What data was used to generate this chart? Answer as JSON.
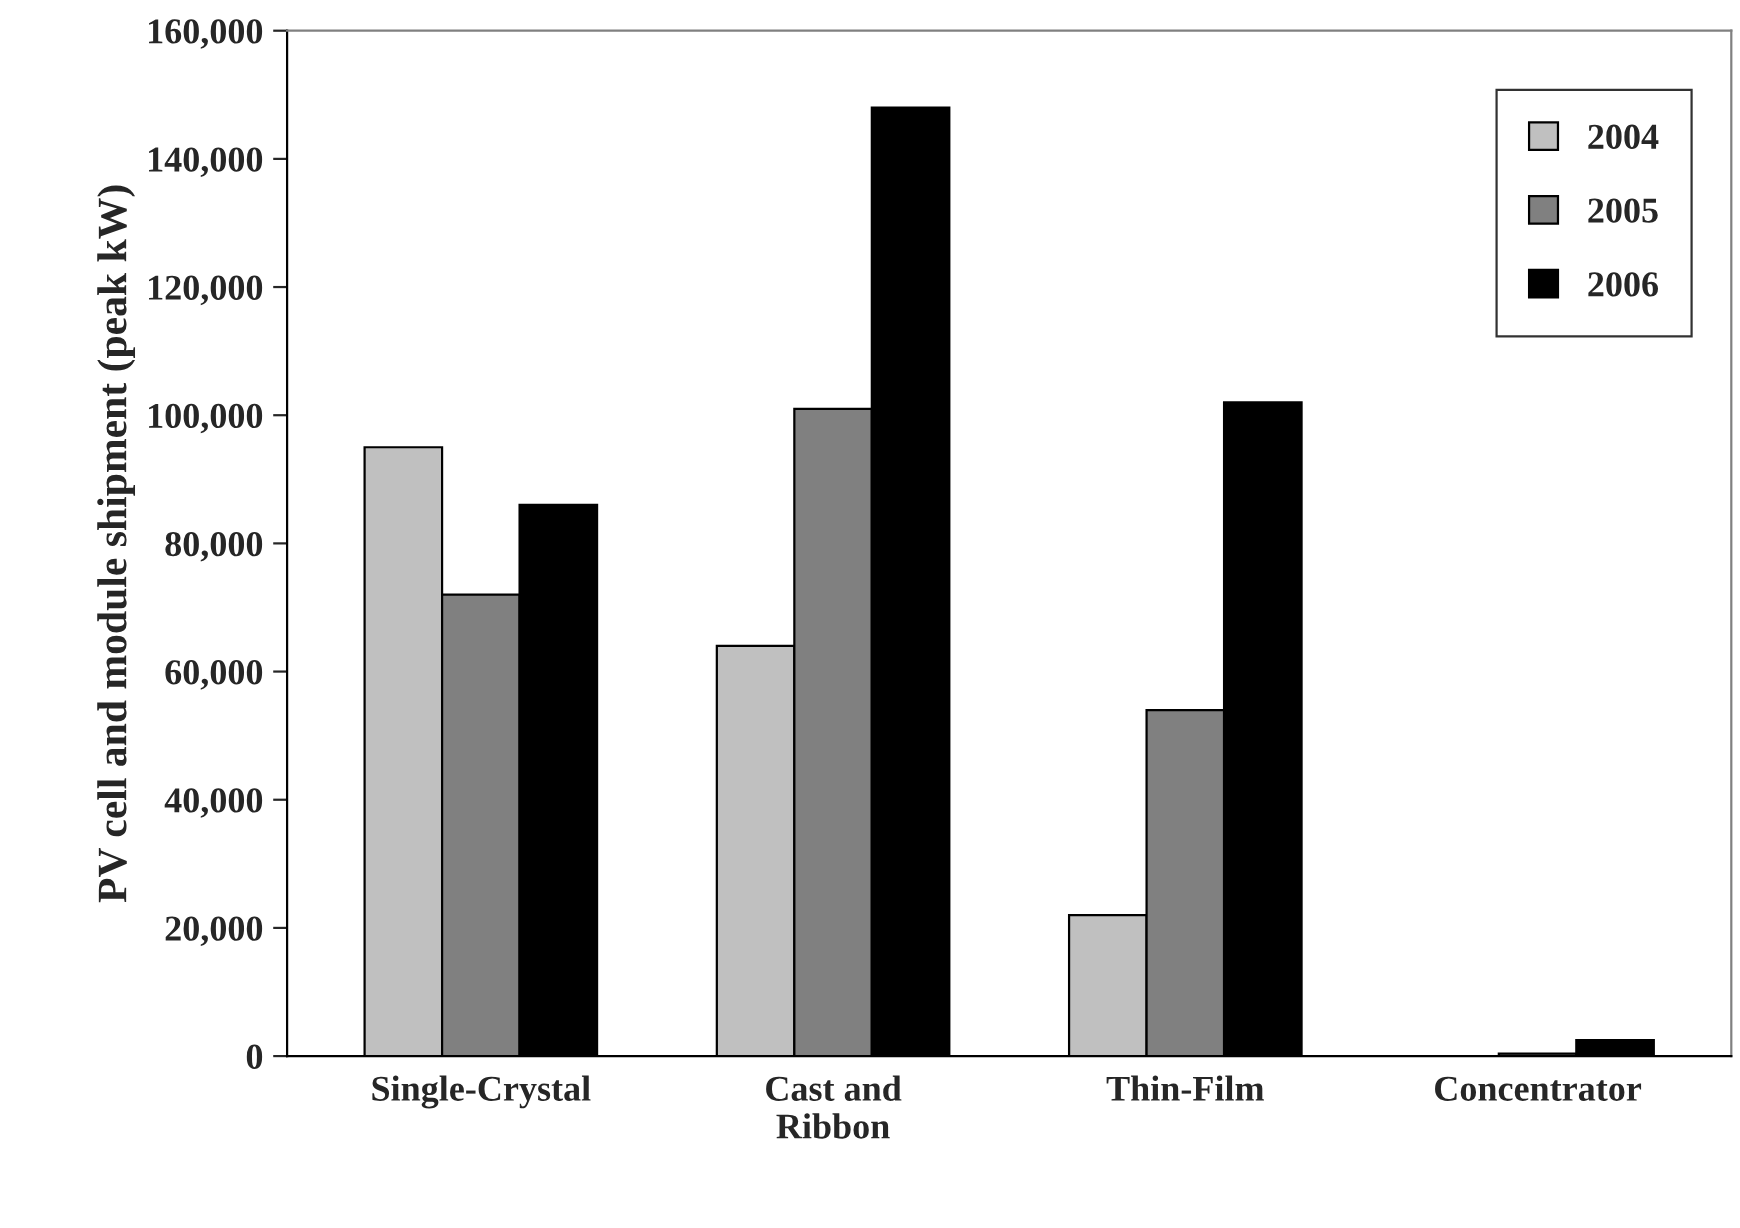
{
  "chart_data": {
    "type": "bar",
    "ylabel": "PV cell and module shipment (peak kW)",
    "categories": [
      "Single-Crystal",
      "Cast and\nRibbon",
      "Thin-Film",
      "Concentrator"
    ],
    "series": [
      {
        "name": "2004",
        "color": "#c0c0c0",
        "values": [
          95000,
          64000,
          22000,
          null
        ]
      },
      {
        "name": "2005",
        "color": "#808080",
        "values": [
          72000,
          101000,
          54000,
          400
        ]
      },
      {
        "name": "2006",
        "color": "#000000",
        "values": [
          86000,
          148000,
          102000,
          2500
        ]
      }
    ],
    "ylim": [
      0,
      160000
    ],
    "yticks": [
      {
        "value": 0,
        "label": "0"
      },
      {
        "value": 20000,
        "label": "20,000"
      },
      {
        "value": 40000,
        "label": "40,000"
      },
      {
        "value": 60000,
        "label": "60,000"
      },
      {
        "value": 80000,
        "label": "80,000"
      },
      {
        "value": 100000,
        "label": "100,000"
      },
      {
        "value": 120000,
        "label": "120,000"
      },
      {
        "value": 140000,
        "label": "140,000"
      },
      {
        "value": 160000,
        "label": "160,000"
      }
    ],
    "grid": false,
    "legend": "top right"
  }
}
